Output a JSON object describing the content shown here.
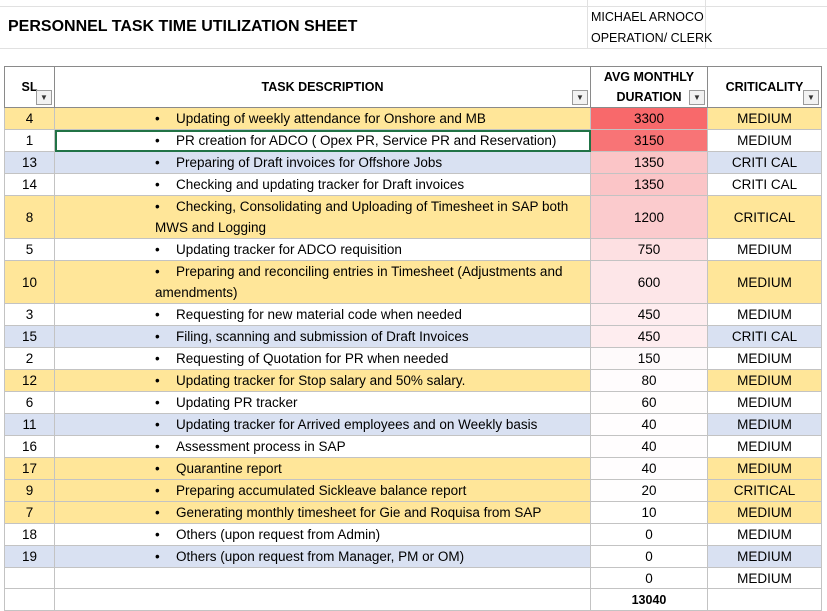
{
  "sheet": {
    "title": "PERSONNEL TASK TIME UTILIZATION SHEET",
    "employee_name": "MICHAEL ARNOCO",
    "employee_role": "OPERATION/ CLERK"
  },
  "headers": {
    "sl": "SL",
    "desc": "TASK DESCRIPTION",
    "avg_line1": "AVG MONTHLY",
    "avg_line2": "DURATION",
    "crit": "CRITICALITY"
  },
  "heat_colors": [
    "#f8696b",
    "#f87f81",
    "#fbc0c2",
    "#fcd3d5",
    "#fde5e7",
    "#fef3f4",
    "#ffffff"
  ],
  "rows": [
    {
      "sl": "4",
      "desc": "Updating of weekly attendance for Onshore and MB",
      "avg": "3300",
      "crit": "MEDIUM",
      "band": "y",
      "heat": "#f8696b"
    },
    {
      "sl": "1",
      "desc": "PR creation for ADCO ( Opex PR, Service PR and Reservation)",
      "avg": "3150",
      "crit": "MEDIUM",
      "band": "w",
      "heat": "#f87476"
    },
    {
      "sl": "13",
      "desc": "Preparing of Draft invoices for Offshore Jobs",
      "avg": "1350",
      "crit": "CRITI CAL",
      "band": "b",
      "heat": "#fbc5c7"
    },
    {
      "sl": "14",
      "desc": "Checking and updating tracker for Draft invoices",
      "avg": "1350",
      "crit": "CRITI CAL",
      "band": "w",
      "heat": "#fbc5c7"
    },
    {
      "sl": "8",
      "desc": "Checking, Consolidating and Uploading of Timesheet in SAP both",
      "desc2": "MWS and Logging",
      "avg": "1200",
      "crit": "CRITICAL",
      "band": "y",
      "heat": "#fbcbcd"
    },
    {
      "sl": "5",
      "desc": "Updating tracker for ADCO requisition",
      "avg": "750",
      "crit": "MEDIUM",
      "band": "w",
      "heat": "#fde0e2"
    },
    {
      "sl": "10",
      "desc": "Preparing and reconciling entries in Timesheet (Adjustments and",
      "desc2": "amendments)",
      "avg": "600",
      "crit": "MEDIUM",
      "band": "y",
      "heat": "#fde6e8"
    },
    {
      "sl": "3",
      "desc": "Requesting for new material code when needed",
      "avg": "450",
      "crit": "MEDIUM",
      "band": "w",
      "heat": "#feedef"
    },
    {
      "sl": "15",
      "desc": "Filing, scanning and submission of Draft Invoices",
      "avg": "450",
      "crit": "CRITI CAL",
      "band": "b",
      "heat": "#feedef"
    },
    {
      "sl": "2",
      "desc": "Requesting of Quotation for PR when needed",
      "avg": "150",
      "crit": "MEDIUM",
      "band": "w",
      "heat": "#fefafb"
    },
    {
      "sl": "12",
      "desc": "Updating tracker for Stop salary and 50% salary.",
      "avg": "80",
      "crit": "MEDIUM",
      "band": "y",
      "heat": "#fffcfd"
    },
    {
      "sl": "6",
      "desc": "Updating PR tracker",
      "avg": "60",
      "crit": "MEDIUM",
      "band": "w",
      "heat": "#fffdfd"
    },
    {
      "sl": "11",
      "desc": "Updating tracker for Arrived employees and on Weekly basis",
      "avg": "40",
      "crit": "MEDIUM",
      "band": "b",
      "heat": "#fffdfe"
    },
    {
      "sl": "16",
      "desc": "Assessment process in SAP",
      "avg": "40",
      "crit": "MEDIUM",
      "band": "w",
      "heat": "#fffdfe"
    },
    {
      "sl": "17",
      "desc": "Quarantine report",
      "avg": "40",
      "crit": "MEDIUM",
      "band": "y",
      "heat": "#fffdfe"
    },
    {
      "sl": "9",
      "desc": "Preparing accumulated Sickleave balance report",
      "avg": "20",
      "crit": "CRITICAL",
      "band": "y",
      "heat": "#fffefe"
    },
    {
      "sl": "7",
      "desc": "Generating monthly timesheet for Gie and Roquisa from SAP",
      "avg": "10",
      "crit": "MEDIUM",
      "band": "y",
      "heat": "#ffffff"
    },
    {
      "sl": "18",
      "desc": "Others (upon request from Admin)",
      "avg": "0",
      "crit": "MEDIUM",
      "band": "w",
      "heat": "#ffffff"
    },
    {
      "sl": "19",
      "desc": "Others (upon request from Manager, PM or OM)",
      "avg": "0",
      "crit": "MEDIUM",
      "band": "b",
      "heat": "#ffffff"
    },
    {
      "sl": "",
      "desc": "",
      "avg": "0",
      "crit": "MEDIUM",
      "band": "w",
      "heat": "#ffffff"
    }
  ],
  "total": "13040",
  "bullet_char": "•"
}
